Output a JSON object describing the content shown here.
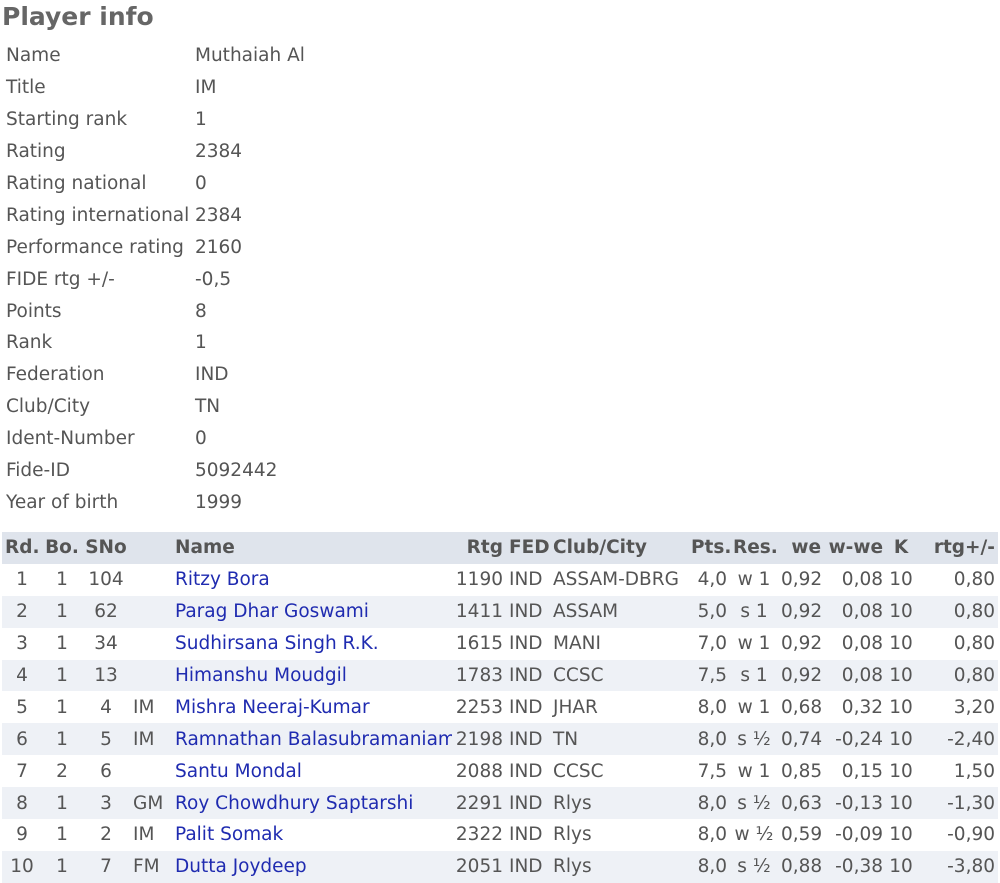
{
  "header": {
    "title": "Player info"
  },
  "info": [
    [
      "Name",
      "Muthaiah Al"
    ],
    [
      "Title",
      "IM"
    ],
    [
      "Starting rank",
      "1"
    ],
    [
      "Rating",
      "2384"
    ],
    [
      "Rating national",
      "0"
    ],
    [
      "Rating international",
      "2384"
    ],
    [
      "Performance rating",
      "2160"
    ],
    [
      "FIDE rtg +/-",
      "-0,5"
    ],
    [
      "Points",
      "8"
    ],
    [
      "Rank",
      "1"
    ],
    [
      "Federation",
      "IND"
    ],
    [
      "Club/City",
      "TN"
    ],
    [
      "Ident-Number",
      "0"
    ],
    [
      "Fide-ID",
      "5092442"
    ],
    [
      "Year of birth",
      "1999"
    ]
  ],
  "table": {
    "columns": [
      "Rd.",
      "Bo.",
      "SNo",
      null,
      "Name",
      "Rtg",
      "FED",
      "Club/City",
      "Pts.",
      "Res.",
      "we",
      "w-we",
      "K",
      "rtg+/-"
    ],
    "rows": [
      [
        "1",
        "1",
        "104",
        null,
        "Ritzy Bora",
        "1190",
        "IND",
        "ASSAM-DBRG",
        "4,0",
        "w 1",
        "0,92",
        "0,08",
        "10",
        "0,80"
      ],
      [
        "2",
        "1",
        "62",
        null,
        "Parag Dhar Goswami",
        "1411",
        "IND",
        "ASSAM",
        "5,0",
        "s 1",
        "0,92",
        "0,08",
        "10",
        "0,80"
      ],
      [
        "3",
        "1",
        "34",
        null,
        "Sudhirsana Singh R.K.",
        "1615",
        "IND",
        "MANI",
        "7,0",
        "w 1",
        "0,92",
        "0,08",
        "10",
        "0,80"
      ],
      [
        "4",
        "1",
        "13",
        null,
        "Himanshu Moudgil",
        "1783",
        "IND",
        "CCSC",
        "7,5",
        "s 1",
        "0,92",
        "0,08",
        "10",
        "0,80"
      ],
      [
        "5",
        "1",
        "4",
        "IM",
        "Mishra Neeraj-Kumar",
        "2253",
        "IND",
        "JHAR",
        "8,0",
        "w 1",
        "0,68",
        "0,32",
        "10",
        "3,20"
      ],
      [
        "6",
        "1",
        "5",
        "IM",
        "Ramnathan Balasubramaniam",
        "2198",
        "IND",
        "TN",
        "8,0",
        "s ½",
        "0,74",
        "-0,24",
        "10",
        "-2,40"
      ],
      [
        "7",
        "2",
        "6",
        null,
        "Santu Mondal",
        "2088",
        "IND",
        "CCSC",
        "7,5",
        "w 1",
        "0,85",
        "0,15",
        "10",
        "1,50"
      ],
      [
        "8",
        "1",
        "3",
        "GM",
        "Roy Chowdhury Saptarshi",
        "2291",
        "IND",
        "Rlys",
        "8,0",
        "s ½",
        "0,63",
        "-0,13",
        "10",
        "-1,30"
      ],
      [
        "9",
        "1",
        "2",
        "IM",
        "Palit Somak",
        "2322",
        "IND",
        "Rlys",
        "8,0",
        "w ½",
        "0,59",
        "-0,09",
        "10",
        "-0,90"
      ],
      [
        "10",
        "1",
        "7",
        "FM",
        "Dutta Joydeep",
        "2051",
        "IND",
        "Rlys",
        "8,0",
        "s ½",
        "0,88",
        "-0,38",
        "10",
        "-3,80"
      ]
    ]
  }
}
